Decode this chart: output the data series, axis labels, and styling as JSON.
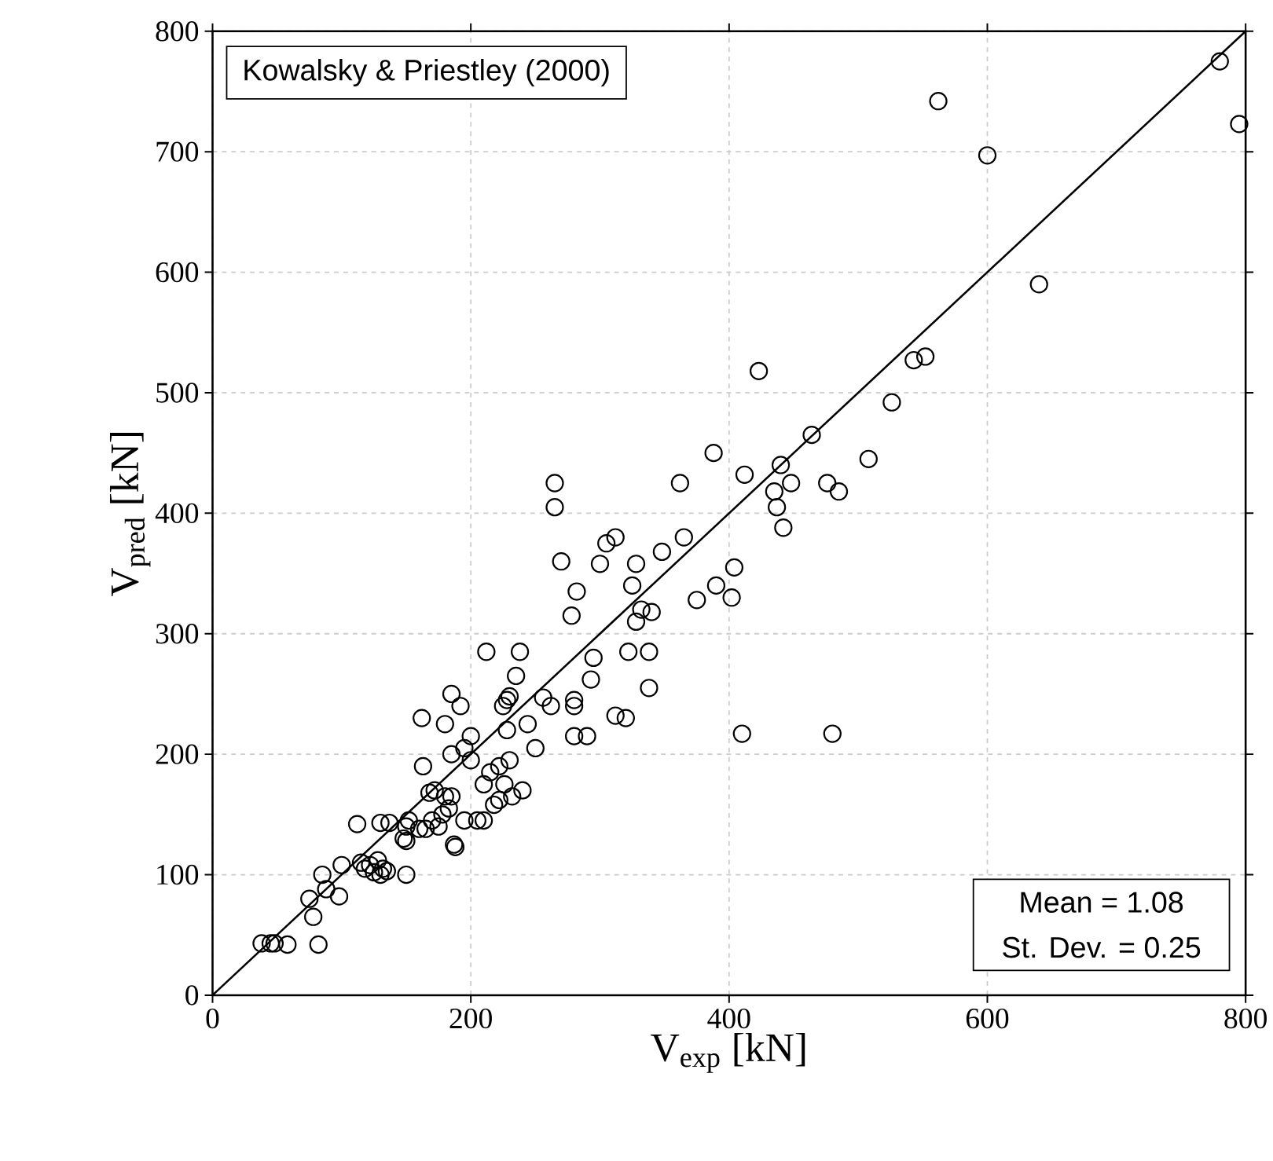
{
  "chart_data": {
    "type": "scatter",
    "xlabel": "V$_{exp}$ [kN]",
    "ylabel": "V$_{pred}$ [kN]",
    "xlim": [
      0,
      800
    ],
    "ylim": [
      0,
      800
    ],
    "xticks": [
      0,
      200,
      400,
      600,
      800
    ],
    "yticks": [
      0,
      100,
      200,
      300,
      400,
      500,
      600,
      700,
      800
    ],
    "grid": true,
    "annotations": [
      "Kowalsky & Priestley (2000)",
      "Mean = 1.08",
      "St. Dev. = 0.25"
    ],
    "series": [
      {
        "marker": "circle",
        "color": "#000000",
        "x": [
          38,
          45,
          48,
          58,
          82,
          78,
          75,
          88,
          85,
          100,
          98,
          115,
          112,
          118,
          122,
          125,
          128,
          130,
          132,
          135,
          137,
          130,
          148,
          150,
          150,
          152,
          150,
          160,
          165,
          170,
          168,
          172,
          163,
          162,
          175,
          178,
          180,
          183,
          185,
          187,
          188,
          180,
          185,
          192,
          185,
          195,
          200,
          200,
          205,
          195,
          210,
          210,
          215,
          212,
          218,
          222,
          222,
          226,
          228,
          230,
          225,
          228,
          232,
          230,
          235,
          238,
          240,
          244,
          250,
          256,
          262,
          265,
          265,
          270,
          278,
          282,
          280,
          280,
          280,
          290,
          293,
          295,
          300,
          305,
          312,
          312,
          320,
          322,
          325,
          328,
          328,
          332,
          338,
          340,
          338,
          348,
          362,
          365,
          375,
          388,
          390,
          402,
          404,
          410,
          412,
          423,
          435,
          437,
          442,
          440,
          448,
          464,
          476,
          480,
          485,
          508,
          526,
          543,
          552,
          562,
          600,
          640,
          780,
          795
        ],
        "values": [
          43,
          43,
          43,
          42,
          42,
          65,
          80,
          88,
          100,
          108,
          82,
          110,
          142,
          105,
          108,
          102,
          112,
          100,
          105,
          103,
          143,
          143,
          130,
          128,
          140,
          145,
          100,
          138,
          138,
          145,
          168,
          170,
          190,
          230,
          140,
          150,
          165,
          155,
          165,
          125,
          123,
          225,
          250,
          240,
          200,
          205,
          215,
          195,
          145,
          145,
          145,
          175,
          185,
          285,
          158,
          190,
          162,
          175,
          245,
          248,
          240,
          220,
          165,
          195,
          265,
          285,
          170,
          225,
          205,
          247,
          240,
          405,
          425,
          360,
          315,
          335,
          245,
          240,
          215,
          215,
          262,
          280,
          358,
          375,
          380,
          232,
          230,
          285,
          340,
          358,
          310,
          320,
          255,
          318,
          285,
          368,
          425,
          380,
          328,
          450,
          340,
          330,
          355,
          217,
          432,
          518,
          418,
          405,
          388,
          440,
          425,
          465,
          425,
          217,
          418,
          445,
          492,
          527,
          530,
          742,
          697,
          590,
          775,
          723
        ]
      },
      {
        "type": "line",
        "marker": "none",
        "line_style": "solid",
        "color": "#000000",
        "x": [
          0,
          800
        ],
        "values": [
          0,
          800
        ]
      }
    ]
  }
}
